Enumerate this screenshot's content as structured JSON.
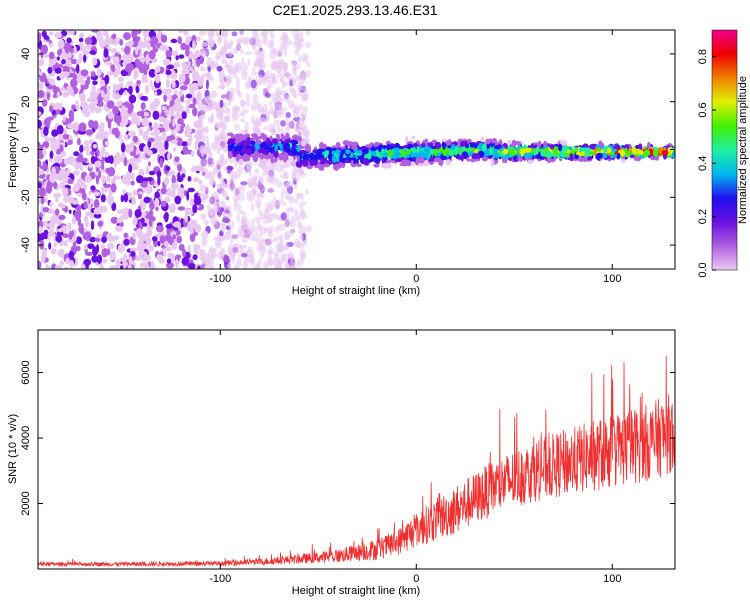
{
  "title": "C2E1.2025.293.13.46.E31",
  "chart_data": [
    {
      "type": "heatmap",
      "name": "spectrogram",
      "xlabel": "Height of straight line (km)",
      "ylabel": "Frequency (Hz)",
      "xlim": [
        -193,
        132
      ],
      "ylim": [
        -50,
        50
      ],
      "xticks": [
        -100,
        0,
        100
      ],
      "xtick_labels": [
        "-100",
        "0",
        "100"
      ],
      "yticks": [
        -40,
        -20,
        0,
        20,
        40
      ],
      "ytick_labels": [
        "-40",
        "-20",
        "0",
        "20",
        "40"
      ],
      "colorbar": {
        "label": "Normalized spectral amplitude",
        "range": [
          0.0,
          0.9
        ],
        "ticks": [
          0.0,
          0.2,
          0.4,
          0.6,
          0.8
        ],
        "tick_labels": [
          "0.0",
          "0.2",
          "0.4",
          "0.6",
          "0.8"
        ],
        "colors": [
          "#e8c8f0",
          "#b060e0",
          "#6a10e0",
          "#2010f0",
          "#00b8f0",
          "#20f0a0",
          "#40f000",
          "#e0f000",
          "#f08000",
          "#f00000",
          "#f00090"
        ]
      },
      "regions": [
        {
          "x": [
            -193,
            -95
          ],
          "band": [
            -50,
            50
          ],
          "level": "noise"
        },
        {
          "x": [
            -95,
            132
          ],
          "band": [
            -8,
            6
          ],
          "level": "signal"
        }
      ]
    },
    {
      "type": "line",
      "name": "snr",
      "xlabel": "Height of straight line (km)",
      "ylabel": "SNR (10 * v/v)",
      "xlim": [
        -193,
        132
      ],
      "ylim": [
        0,
        7300
      ],
      "xticks": [
        -100,
        0,
        100
      ],
      "xtick_labels": [
        "-100",
        "0",
        "100"
      ],
      "yticks": [
        2000,
        4000,
        6000
      ],
      "ytick_labels": [
        "2000",
        "4000",
        "6000"
      ],
      "color": "#f03030",
      "series": [
        {
          "name": "SNR",
          "x": [
            -193,
            -150,
            -100,
            -80,
            -60,
            -40,
            -20,
            -10,
            0,
            10,
            20,
            40,
            60,
            80,
            100,
            120,
            132
          ],
          "mean": [
            150,
            150,
            170,
            220,
            300,
            400,
            600,
            800,
            1200,
            1500,
            1800,
            2500,
            3000,
            3300,
            3600,
            3900,
            4200
          ],
          "spread": [
            120,
            120,
            140,
            200,
            280,
            420,
            650,
            800,
            1100,
            1300,
            1500,
            1700,
            1900,
            2100,
            2300,
            2400,
            2500
          ]
        }
      ]
    }
  ]
}
